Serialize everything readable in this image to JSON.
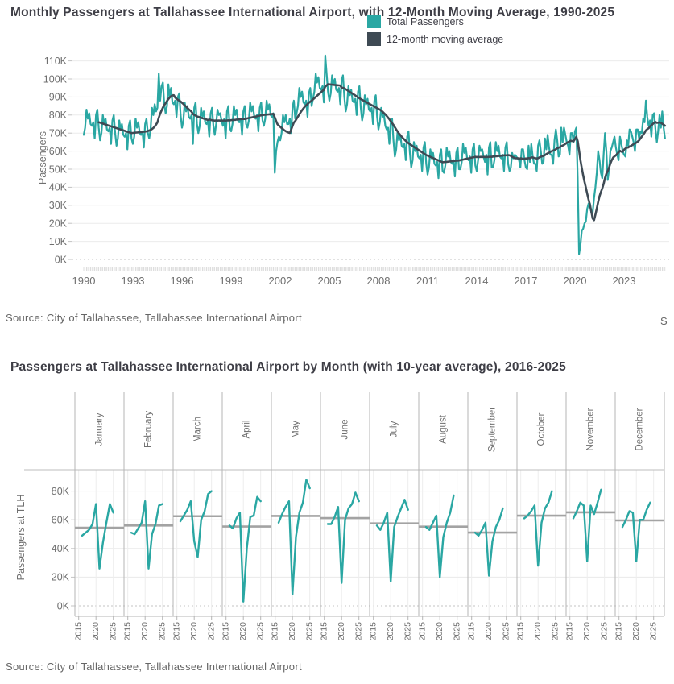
{
  "page": {
    "background": "#ffffff",
    "edge_text": "S"
  },
  "top_chart": {
    "title": "Monthly Passengers at Tallahassee International Airport, with 12-Month Moving Average, 1990-2025",
    "ylabel": "Passengers",
    "source": "Source: City of Tallahassee, Tallahassee International Airport",
    "legend": [
      {
        "label": "Total Passengers",
        "color": "#2aa7a3"
      },
      {
        "label": "12-month moving average",
        "color": "#3e4a54"
      }
    ]
  },
  "bottom_chart": {
    "title": "Passengers at Tallahassee International Airport by Month (with 10-year average),  2016-2025",
    "ylabel": "Passengers at TLH",
    "source": "Source: City of Tallahassee, Tallahassee International Airport"
  },
  "chart_data": [
    {
      "type": "line",
      "title": "Monthly Passengers at Tallahassee International Airport, with 12-Month Moving Average, 1990-2025",
      "units": "thousands of passengers",
      "xlabel": "",
      "ylabel": "Passengers",
      "ylim": [
        0,
        115
      ],
      "x_range": [
        "1990-01",
        "2025-07"
      ],
      "x_ticks": [
        1990,
        1993,
        1996,
        1999,
        2002,
        2005,
        2008,
        2011,
        2014,
        2017,
        2020,
        2023
      ],
      "y_ticks": [
        0,
        10,
        20,
        30,
        40,
        50,
        60,
        70,
        80,
        90,
        100,
        110
      ],
      "y_tick_suffix": "K",
      "grid": true,
      "legend_position": "top-center",
      "series": [
        {
          "name": "Total Passengers",
          "color": "#2aa7a3"
        },
        {
          "name": "12-month moving average",
          "color": "#3e4a54",
          "derivation": "trailing 12-month mean of Total Passengers"
        }
      ],
      "values_by_year": {
        "1990": [
          69,
          73,
          83,
          78,
          81,
          75,
          74,
          76,
          67,
          80,
          83,
          73
        ],
        "1991": [
          66,
          70,
          80,
          75,
          78,
          72,
          71,
          73,
          64,
          77,
          80,
          70
        ],
        "1992": [
          63,
          67,
          77,
          72,
          75,
          69,
          68,
          70,
          61,
          74,
          77,
          67
        ],
        "1993": [
          64,
          68,
          78,
          73,
          76,
          70,
          69,
          71,
          62,
          75,
          78,
          70
        ],
        "1994": [
          67,
          72,
          84,
          80,
          86,
          82,
          84,
          103,
          88,
          96,
          98,
          86
        ],
        "1995": [
          81,
          85,
          97,
          90,
          95,
          87,
          86,
          88,
          79,
          90,
          92,
          80
        ],
        "1996": [
          73,
          77,
          87,
          82,
          85,
          79,
          78,
          80,
          64,
          84,
          87,
          75
        ],
        "1997": [
          70,
          74,
          84,
          79,
          82,
          76,
          75,
          77,
          68,
          81,
          84,
          74
        ],
        "1998": [
          69,
          75,
          83,
          80,
          81,
          77,
          74,
          78,
          67,
          82,
          85,
          73
        ],
        "1999": [
          71,
          75,
          85,
          80,
          83,
          77,
          76,
          78,
          69,
          82,
          85,
          75
        ],
        "2000": [
          73,
          77,
          87,
          82,
          85,
          79,
          78,
          80,
          71,
          84,
          87,
          77
        ],
        "2001": [
          74,
          78,
          88,
          83,
          86,
          80,
          79,
          81,
          48,
          60,
          65,
          68
        ],
        "2002": [
          66,
          70,
          80,
          76,
          80,
          75,
          75,
          78,
          70,
          84,
          88,
          78
        ],
        "2003": [
          81,
          85,
          95,
          90,
          93,
          87,
          86,
          88,
          79,
          92,
          95,
          85
        ],
        "2004": [
          89,
          93,
          103,
          98,
          101,
          95,
          94,
          96,
          87,
          113,
          103,
          93
        ],
        "2005": [
          88,
          92,
          102,
          97,
          100,
          94,
          93,
          95,
          86,
          99,
          102,
          90
        ],
        "2006": [
          82,
          86,
          96,
          91,
          94,
          88,
          87,
          89,
          80,
          93,
          96,
          84
        ],
        "2007": [
          77,
          81,
          91,
          86,
          89,
          83,
          82,
          84,
          75,
          88,
          91,
          79
        ],
        "2008": [
          72,
          76,
          84,
          79,
          80,
          74,
          72,
          73,
          64,
          76,
          78,
          66
        ],
        "2009": [
          57,
          61,
          71,
          66,
          69,
          63,
          62,
          64,
          55,
          68,
          71,
          59
        ],
        "2010": [
          51,
          55,
          65,
          60,
          63,
          57,
          56,
          58,
          49,
          62,
          65,
          53
        ],
        "2011": [
          47,
          51,
          61,
          56,
          59,
          53,
          52,
          54,
          45,
          58,
          61,
          49
        ],
        "2012": [
          48,
          52,
          62,
          57,
          60,
          54,
          53,
          55,
          46,
          59,
          62,
          50
        ],
        "2013": [
          50,
          54,
          64,
          59,
          62,
          56,
          55,
          57,
          48,
          61,
          64,
          52
        ],
        "2014": [
          49,
          55,
          63,
          60,
          61,
          57,
          54,
          58,
          47,
          62,
          65,
          51
        ],
        "2015": [
          51,
          55,
          65,
          60,
          63,
          57,
          56,
          58,
          49,
          62,
          65,
          53
        ],
        "2016": [
          49,
          51,
          59,
          56,
          58,
          57,
          56,
          55,
          51,
          61,
          61,
          55
        ],
        "2017": [
          51,
          50,
          63,
          54,
          64,
          57,
          53,
          53,
          49,
          63,
          66,
          60
        ],
        "2018": [
          53,
          54,
          67,
          61,
          69,
          62,
          58,
          58,
          53,
          66,
          72,
          66
        ],
        "2019": [
          57,
          58,
          73,
          65,
          73,
          69,
          65,
          63,
          58,
          70,
          70,
          65
        ],
        "2020": [
          71,
          73,
          45,
          3,
          8,
          16,
          17,
          20,
          21,
          28,
          31,
          31
        ],
        "2021": [
          26,
          26,
          34,
          40,
          48,
          60,
          55,
          48,
          45,
          58,
          70,
          60
        ],
        "2022": [
          44,
          50,
          60,
          62,
          65,
          68,
          62,
          58,
          55,
          68,
          64,
          60
        ],
        "2023": [
          58,
          57,
          66,
          63,
          72,
          71,
          68,
          65,
          60,
          72,
          72,
          67
        ],
        "2024": [
          71,
          70,
          78,
          76,
          88,
          79,
          74,
          77,
          68,
          80,
          81,
          72
        ],
        "2025": [
          65,
          71,
          80,
          73,
          82,
          73,
          67
        ]
      }
    },
    {
      "type": "line",
      "subtype": "small-multiples-by-month",
      "title": "Passengers at Tallahassee International Airport by Month (with 10-year average),  2016-2025",
      "units": "thousands of passengers",
      "ylabel": "Passengers at TLH",
      "months": [
        "January",
        "February",
        "March",
        "April",
        "May",
        "June",
        "July",
        "August",
        "September",
        "October",
        "November",
        "December"
      ],
      "years": [
        2016,
        2017,
        2018,
        2019,
        2020,
        2021,
        2022,
        2023,
        2024,
        2025
      ],
      "x_ticks": [
        2015,
        2020,
        2025
      ],
      "y_ticks": [
        0,
        20,
        40,
        60,
        80
      ],
      "y_tick_suffix": "K",
      "ylim": [
        0,
        95
      ],
      "series_color": "#2aa7a3",
      "average_label": "10-year average",
      "average_color": "#a3a3a3",
      "values_source": "chart_data.0.values_by_year (per-month slices across years 2016-2025)"
    }
  ]
}
